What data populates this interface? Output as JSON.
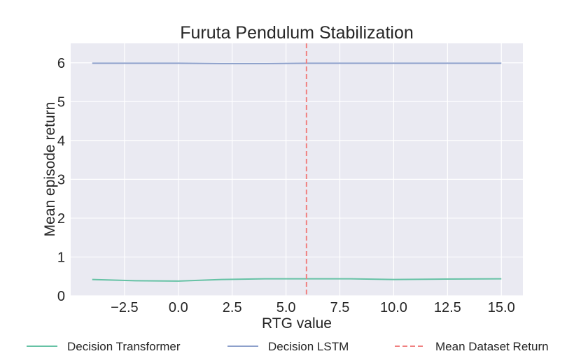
{
  "chart_data": {
    "type": "line",
    "title": "Furuta Pendulum Stabilization",
    "xlabel": "RTG value",
    "ylabel": "Mean episode return",
    "xlim": [
      -5.0,
      16.0
    ],
    "ylim": [
      0,
      6.5
    ],
    "x_ticks": [
      -2.5,
      0.0,
      2.5,
      5.0,
      7.5,
      10.0,
      12.5,
      15.0
    ],
    "x_tick_labels": [
      "−2.5",
      "0.0",
      "2.5",
      "5.0",
      "7.5",
      "10.0",
      "12.5",
      "15.0"
    ],
    "y_ticks": [
      0,
      1,
      2,
      3,
      4,
      5,
      6
    ],
    "y_tick_labels": [
      "0",
      "1",
      "2",
      "3",
      "4",
      "5",
      "6"
    ],
    "grid": true,
    "legend_position": "bottom",
    "series": [
      {
        "name": "Decision Transformer",
        "color": "#66c2a5",
        "style": "solid",
        "x": [
          -4,
          -2,
          0,
          2,
          4,
          6,
          8,
          10,
          12,
          15
        ],
        "y": [
          0.42,
          0.39,
          0.38,
          0.42,
          0.44,
          0.44,
          0.44,
          0.42,
          0.43,
          0.44
        ]
      },
      {
        "name": "Decision LSTM",
        "color": "#8da0cb",
        "style": "solid",
        "x": [
          -4,
          -2,
          0,
          2,
          4,
          6,
          8,
          10,
          12,
          15
        ],
        "y": [
          5.99,
          5.99,
          5.99,
          5.98,
          5.98,
          5.99,
          5.99,
          5.99,
          5.99,
          5.99
        ]
      },
      {
        "name": "Mean Dataset Return",
        "color": "#f08080",
        "style": "dashed",
        "type": "vline",
        "x_value": 5.95
      }
    ]
  }
}
